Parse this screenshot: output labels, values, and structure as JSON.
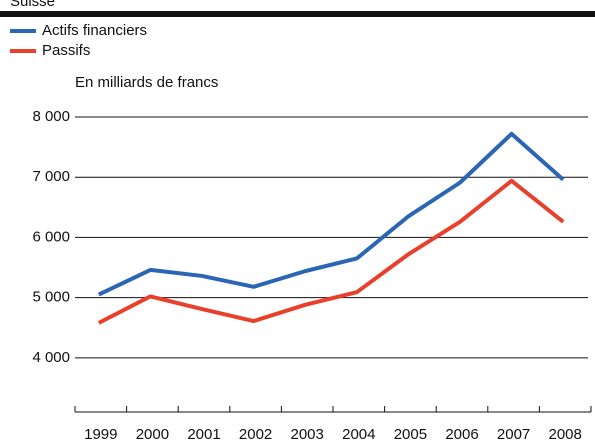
{
  "chart_data": {
    "type": "line",
    "title": "Suisse",
    "subtitle": "En milliards de francs",
    "categories": [
      "1999",
      "2000",
      "2001",
      "2002",
      "2003",
      "2004",
      "2005",
      "2006",
      "2007",
      "2008"
    ],
    "series": [
      {
        "name": "Actifs financiers",
        "color": "#2a66b4",
        "values": [
          5050,
          5460,
          5360,
          5180,
          5440,
          5650,
          6350,
          6910,
          7720,
          6960
        ]
      },
      {
        "name": "Passifs",
        "color": "#e8402a",
        "values": [
          4580,
          5020,
          4810,
          4610,
          4880,
          5090,
          5720,
          6260,
          6940,
          6260
        ]
      }
    ],
    "ylim": [
      3100,
      8000
    ],
    "yticks": [
      {
        "value": 4000,
        "label": "4 000"
      },
      {
        "value": 5000,
        "label": "5 000"
      },
      {
        "value": 6000,
        "label": "6 000"
      },
      {
        "value": 7000,
        "label": "7 000"
      },
      {
        "value": 8000,
        "label": "8 000"
      }
    ],
    "grid": true,
    "legend": "top-left"
  }
}
